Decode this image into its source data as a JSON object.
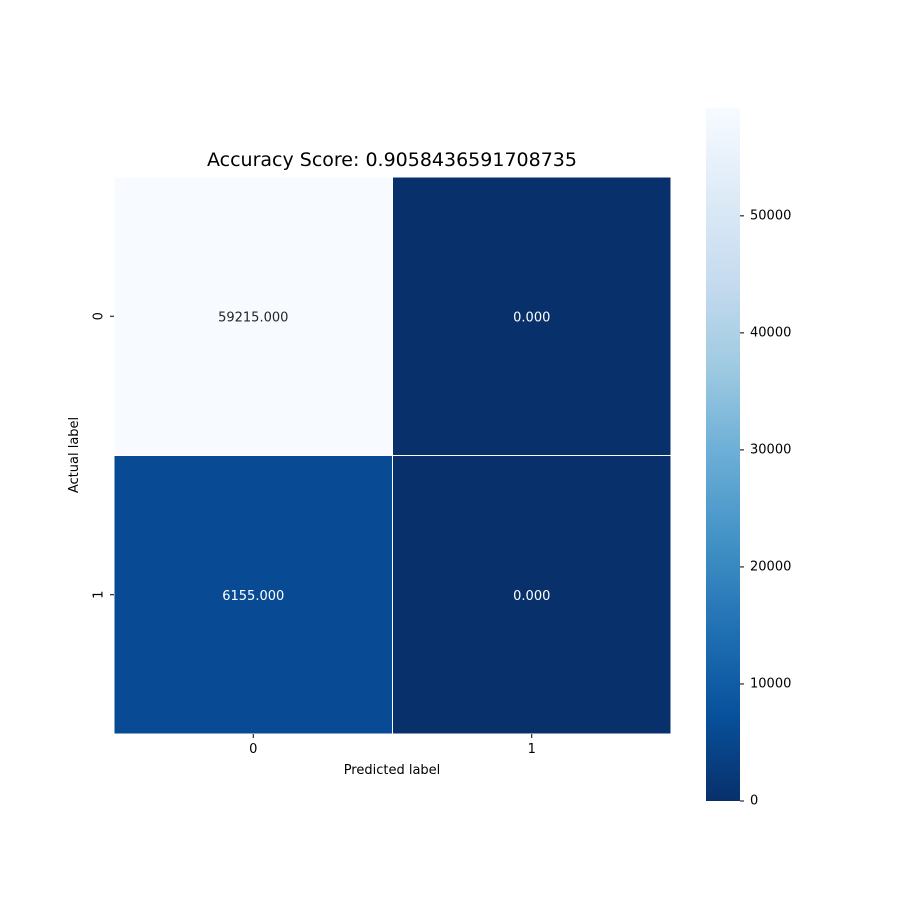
{
  "chart_data": {
    "type": "heatmap",
    "title": "Accuracy Score: 0.9058436591708735",
    "xlabel": "Predicted label",
    "ylabel": "Actual label",
    "x_categories": [
      "0",
      "1"
    ],
    "y_categories": [
      "0",
      "1"
    ],
    "values": [
      [
        59215,
        0
      ],
      [
        6155,
        0
      ]
    ],
    "annotations": [
      [
        "59215.000",
        "0.000"
      ],
      [
        "6155.000",
        "0.000"
      ]
    ],
    "colormap": "Blues_r",
    "colorbar": {
      "range": [
        0,
        59215
      ],
      "ticks": [
        0,
        10000,
        20000,
        30000,
        40000,
        50000
      ],
      "tick_labels": [
        "0",
        "10000",
        "20000",
        "30000",
        "40000",
        "50000"
      ]
    },
    "grid": false,
    "legend": "colorbar right"
  },
  "colors": {
    "cmap_light": "#f7fbff",
    "cmap_dark": "#08306b",
    "cell_border": "#ffffff",
    "text_dark": "#262626",
    "text_light": "#ffffff"
  }
}
